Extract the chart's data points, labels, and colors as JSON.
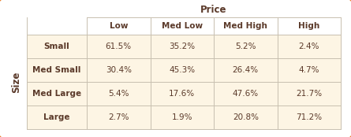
{
  "title": "Price",
  "col_headers": [
    "Low",
    "Med Low",
    "Med High",
    "High"
  ],
  "row_header_label": "Size",
  "row_labels": [
    "Small",
    "Med Small",
    "Med Large",
    "Large"
  ],
  "cell_data": [
    [
      "61.5%",
      "35.2%",
      "5.2%",
      "2.4%"
    ],
    [
      "30.4%",
      "45.3%",
      "26.4%",
      "4.7%"
    ],
    [
      "5.4%",
      "17.6%",
      "47.6%",
      "21.7%"
    ],
    [
      "2.7%",
      "1.9%",
      "20.8%",
      "71.2%"
    ]
  ],
  "outer_border_color": "#E8761A",
  "cell_bg_color": "#FDF5E4",
  "header_bg_color": "#FFFFFF",
  "text_color": "#5B3A2A",
  "grid_color": "#C8C0B0",
  "title_fontsize": 8.5,
  "header_fontsize": 7.5,
  "cell_fontsize": 7.5,
  "size_label_fontsize": 8.5
}
